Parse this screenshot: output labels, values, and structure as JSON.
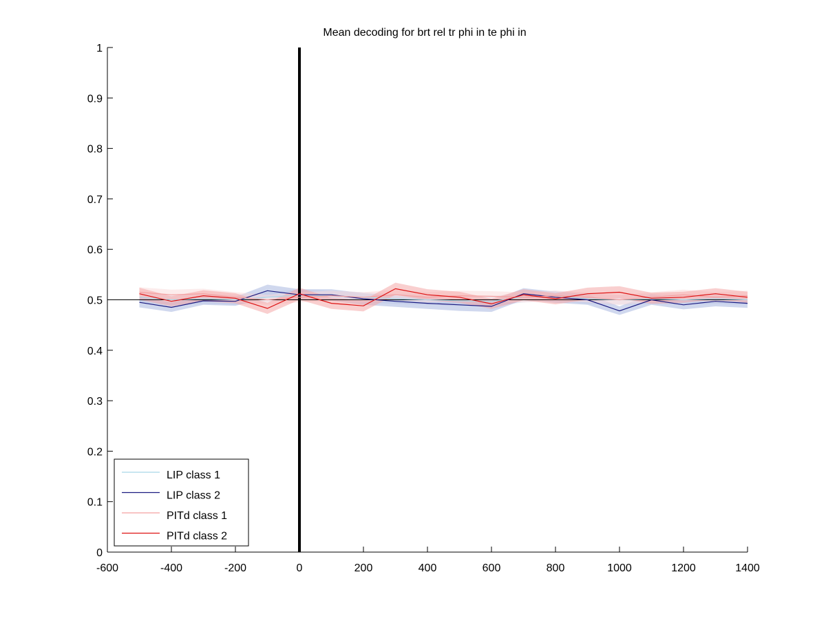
{
  "chart_data": {
    "type": "line",
    "title": "Mean decoding for brt rel tr phi in te phi in",
    "xlabel": "",
    "ylabel": "",
    "xlim": [
      -600,
      1400
    ],
    "ylim": [
      0,
      1
    ],
    "xticks": [
      -600,
      -400,
      -200,
      0,
      200,
      400,
      600,
      800,
      1000,
      1200,
      1400
    ],
    "yticks": [
      0,
      0.1,
      0.2,
      0.3,
      0.4,
      0.5,
      0.6,
      0.7,
      0.8,
      0.9,
      1
    ],
    "x_tick_labels": [
      "-600",
      "-400",
      "-200",
      "0",
      "200",
      "400",
      "600",
      "800",
      "1000",
      "1200",
      "1400"
    ],
    "y_tick_labels": [
      "0",
      "0.1",
      "0.2",
      "0.3",
      "0.4",
      "0.5",
      "0.6",
      "0.7",
      "0.8",
      "0.9",
      "1"
    ],
    "grid": false,
    "legend_position": "bottom-left",
    "reference_line_y": 0.5,
    "vertical_marker_x": 0,
    "x": [
      -500,
      -400,
      -300,
      -200,
      -100,
      0,
      100,
      200,
      300,
      400,
      500,
      600,
      700,
      800,
      900,
      1000,
      1100,
      1200,
      1300,
      1400
    ],
    "series": [
      {
        "name": "LIP class 1",
        "color": "#a8d8e8",
        "band_color": "#d6dcf0",
        "values": [
          0.505,
          0.5,
          0.502,
          0.5,
          0.505,
          0.51,
          0.508,
          0.505,
          0.502,
          0.5,
          0.498,
          0.497,
          0.505,
          0.508,
          0.502,
          0.5,
          0.502,
          0.5,
          0.502,
          0.5
        ],
        "lower": [
          0.495,
          0.49,
          0.492,
          0.49,
          0.495,
          0.5,
          0.498,
          0.495,
          0.492,
          0.49,
          0.488,
          0.487,
          0.495,
          0.498,
          0.492,
          0.49,
          0.492,
          0.49,
          0.492,
          0.49
        ],
        "upper": [
          0.515,
          0.51,
          0.512,
          0.51,
          0.515,
          0.52,
          0.518,
          0.515,
          0.512,
          0.51,
          0.508,
          0.507,
          0.515,
          0.518,
          0.512,
          0.51,
          0.512,
          0.51,
          0.512,
          0.51
        ]
      },
      {
        "name": "LIP class 2",
        "color": "#1a1a80",
        "band_color": "#aab8e0",
        "values": [
          0.495,
          0.485,
          0.498,
          0.497,
          0.518,
          0.51,
          0.51,
          0.502,
          0.497,
          0.493,
          0.49,
          0.487,
          0.512,
          0.505,
          0.5,
          0.478,
          0.5,
          0.49,
          0.497,
          0.493
        ],
        "lower": [
          0.485,
          0.476,
          0.49,
          0.488,
          0.505,
          0.5,
          0.498,
          0.49,
          0.486,
          0.482,
          0.478,
          0.476,
          0.5,
          0.494,
          0.49,
          0.47,
          0.49,
          0.481,
          0.487,
          0.484
        ],
        "upper": [
          0.506,
          0.495,
          0.507,
          0.506,
          0.53,
          0.521,
          0.521,
          0.513,
          0.508,
          0.504,
          0.502,
          0.498,
          0.523,
          0.516,
          0.511,
          0.487,
          0.511,
          0.5,
          0.508,
          0.503
        ]
      },
      {
        "name": "PITd class 1",
        "color": "#f4a0a0",
        "band_color": "#fadcdc",
        "values": [
          0.515,
          0.51,
          0.512,
          0.505,
          0.5,
          0.505,
          0.508,
          0.505,
          0.51,
          0.505,
          0.508,
          0.507,
          0.505,
          0.508,
          0.505,
          0.5,
          0.505,
          0.51,
          0.505,
          0.508
        ],
        "lower": [
          0.505,
          0.5,
          0.502,
          0.495,
          0.49,
          0.495,
          0.498,
          0.495,
          0.5,
          0.495,
          0.498,
          0.497,
          0.495,
          0.498,
          0.495,
          0.49,
          0.495,
          0.5,
          0.495,
          0.498
        ],
        "upper": [
          0.525,
          0.52,
          0.522,
          0.515,
          0.51,
          0.515,
          0.518,
          0.515,
          0.52,
          0.515,
          0.518,
          0.517,
          0.515,
          0.518,
          0.515,
          0.51,
          0.515,
          0.52,
          0.515,
          0.518
        ]
      },
      {
        "name": "PITd class 2",
        "color": "#dd1111",
        "band_color": "#f4a8a8",
        "values": [
          0.512,
          0.497,
          0.508,
          0.503,
          0.483,
          0.512,
          0.493,
          0.488,
          0.522,
          0.51,
          0.505,
          0.492,
          0.51,
          0.502,
          0.512,
          0.515,
          0.503,
          0.505,
          0.512,
          0.505
        ],
        "lower": [
          0.5,
          0.487,
          0.497,
          0.493,
          0.472,
          0.5,
          0.482,
          0.477,
          0.51,
          0.499,
          0.494,
          0.482,
          0.499,
          0.491,
          0.5,
          0.503,
          0.492,
          0.494,
          0.501,
          0.494
        ],
        "upper": [
          0.524,
          0.507,
          0.519,
          0.513,
          0.494,
          0.524,
          0.504,
          0.499,
          0.534,
          0.521,
          0.516,
          0.502,
          0.521,
          0.513,
          0.524,
          0.527,
          0.514,
          0.516,
          0.523,
          0.516
        ]
      }
    ]
  }
}
